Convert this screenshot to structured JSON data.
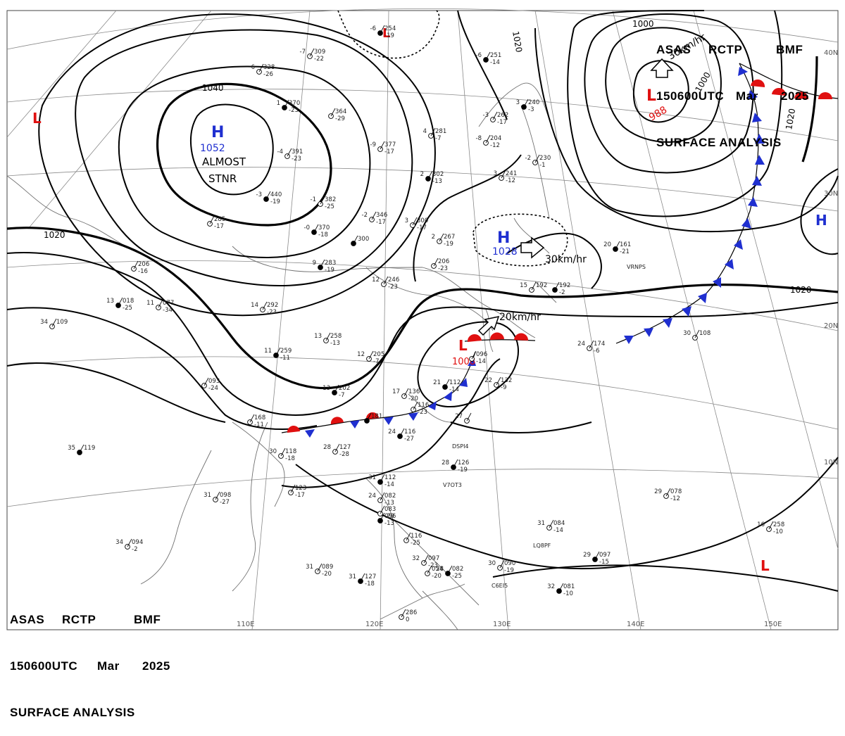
{
  "header": {
    "line1": [
      "ASAS",
      "RCTP",
      "BMF"
    ],
    "line2": [
      "150600UTC",
      "Mar",
      "2025"
    ],
    "line3": "SURFACE ANALYSIS"
  },
  "graticule": {
    "lat_labels": [
      "40N",
      "30N",
      "20N",
      "10N"
    ],
    "lon_labels": [
      "110E",
      "120E",
      "130E",
      "140E",
      "150E"
    ]
  },
  "isobar_labels": [
    "1040",
    "1020",
    "1020",
    "1000",
    "1000",
    "1020",
    "1020"
  ],
  "pressure_centers": [
    {
      "type": "H",
      "value": "1052",
      "note": [
        "ALMOST",
        "STNR"
      ]
    },
    {
      "type": "H",
      "value": "1028"
    },
    {
      "type": "H",
      "value": ""
    },
    {
      "type": "L",
      "value": "988"
    },
    {
      "type": "L",
      "value": "1008"
    },
    {
      "type": "L",
      "value": ""
    },
    {
      "type": "L",
      "value": ""
    },
    {
      "type": "L",
      "value": ""
    }
  ],
  "motion_labels": [
    "30km/hr",
    "20km/hr",
    "30km/hr"
  ],
  "colors": {
    "high": "#1f2fd0",
    "low": "#e01010",
    "isobar": "#000000",
    "coast": "#707070",
    "grid": "#8a8a8a"
  },
  "stations": [
    {
      "t": "-6",
      "p": "254",
      "d": "-19"
    },
    {
      "t": "-7",
      "p": "309",
      "d": "-22"
    },
    {
      "t": "6",
      "p": "328",
      "d": "-26"
    },
    {
      "t": "1",
      "p": "370",
      "d": "-23"
    },
    {
      "t": "",
      "p": "364",
      "d": "-29"
    },
    {
      "t": "-4",
      "p": "391",
      "d": "-23"
    },
    {
      "t": "-3",
      "p": "440",
      "d": "-19"
    },
    {
      "t": "-1",
      "p": "382",
      "d": "-25"
    },
    {
      "t": "-9",
      "p": "377",
      "d": "-17"
    },
    {
      "t": "-0",
      "p": "370",
      "d": "-18"
    },
    {
      "t": "-2",
      "p": "346",
      "d": "-17"
    },
    {
      "t": "3",
      "p": "300",
      "d": "-17"
    },
    {
      "t": "",
      "p": "300",
      "d": ""
    },
    {
      "t": "",
      "p": "285",
      "d": "-17"
    },
    {
      "t": "",
      "p": "206",
      "d": "-16"
    },
    {
      "t": "13",
      "p": "018",
      "d": "-25"
    },
    {
      "t": "11",
      "p": "077",
      "d": "-34"
    },
    {
      "t": "14",
      "p": "292",
      "d": "-23"
    },
    {
      "t": "9",
      "p": "283",
      "d": "-19"
    },
    {
      "t": "12",
      "p": "246",
      "d": "-23"
    },
    {
      "t": "4",
      "p": "281",
      "d": "-7"
    },
    {
      "t": "-6",
      "p": "251",
      "d": "-14"
    },
    {
      "t": "-3",
      "p": "262",
      "d": "-17"
    },
    {
      "t": "-8",
      "p": "204",
      "d": "-12"
    },
    {
      "t": "3",
      "p": "240",
      "d": "-3"
    },
    {
      "t": "-2",
      "p": "230",
      "d": "-1"
    },
    {
      "t": "3",
      "p": "241",
      "d": "-12"
    },
    {
      "t": "2",
      "p": "302",
      "d": "-13"
    },
    {
      "t": "2",
      "p": "267",
      "d": "-19"
    },
    {
      "t": "",
      "p": "206",
      "d": "-23"
    },
    {
      "t": "",
      "p": "192",
      "d": "-2"
    },
    {
      "t": "15",
      "p": "192",
      "d": ""
    },
    {
      "t": "13",
      "p": "258",
      "d": "-13"
    },
    {
      "t": "11",
      "p": "259",
      "d": "-11"
    },
    {
      "t": "12",
      "p": "205",
      "d": "-7"
    },
    {
      "t": "",
      "p": "093",
      "d": "-24"
    },
    {
      "t": "13",
      "p": "202",
      "d": "-7"
    },
    {
      "t": "17",
      "p": "136",
      "d": "-20"
    },
    {
      "t": "",
      "p": "116",
      "d": "-23"
    },
    {
      "t": "21",
      "p": "112",
      "d": "-14"
    },
    {
      "t": "22",
      "p": "132",
      "d": "-9"
    },
    {
      "t": "",
      "p": "096",
      "d": "-14"
    },
    {
      "t": "24",
      "p": "116",
      "d": "-27"
    },
    {
      "t": "27",
      "p": "",
      "d": ""
    },
    {
      "t": "28",
      "p": "127",
      "d": "-28"
    },
    {
      "t": "28",
      "p": "126",
      "d": "-19"
    },
    {
      "t": "30",
      "p": "118",
      "d": "-18"
    },
    {
      "t": "",
      "p": "168",
      "d": "-11"
    },
    {
      "t": "",
      "p": "181",
      "d": ""
    },
    {
      "t": "",
      "p": "123",
      "d": "-17"
    },
    {
      "t": "31",
      "p": "098",
      "d": "-27"
    },
    {
      "t": "35",
      "p": "119",
      "d": ""
    },
    {
      "t": "34",
      "p": "109",
      "d": ""
    },
    {
      "t": "34",
      "p": "094",
      "d": "-2"
    },
    {
      "t": "31",
      "p": "112",
      "d": "-14"
    },
    {
      "t": "24",
      "p": "082",
      "d": "-13"
    },
    {
      "t": "",
      "p": "083",
      "d": "-29"
    },
    {
      "t": "",
      "p": "096",
      "d": "-13"
    },
    {
      "t": "",
      "p": "116",
      "d": "-25"
    },
    {
      "t": "32",
      "p": "097",
      "d": "-23"
    },
    {
      "t": "31",
      "p": "127",
      "d": "-18"
    },
    {
      "t": "31",
      "p": "089",
      "d": "-20"
    },
    {
      "t": "",
      "p": "054",
      "d": "-20"
    },
    {
      "t": "28",
      "p": "082",
      "d": "-25"
    },
    {
      "t": "30",
      "p": "090",
      "d": "-19"
    },
    {
      "t": "31",
      "p": "084",
      "d": "-14"
    },
    {
      "t": "29",
      "p": "097",
      "d": "-15"
    },
    {
      "t": "29",
      "p": "078",
      "d": "-12"
    },
    {
      "t": "16",
      "p": "258",
      "d": "-10"
    },
    {
      "t": "20",
      "p": "161",
      "d": "-21"
    },
    {
      "t": "24",
      "p": "174",
      "d": "-6"
    },
    {
      "t": "30",
      "p": "108",
      "d": ""
    },
    {
      "t": "32",
      "p": "081",
      "d": "-10"
    },
    {
      "t": "",
      "p": "286",
      "d": "0"
    }
  ],
  "ship_ids": [
    "VRNPS",
    "DSPI4",
    "V7OT3",
    "LQ8PF",
    "C6EI5"
  ]
}
